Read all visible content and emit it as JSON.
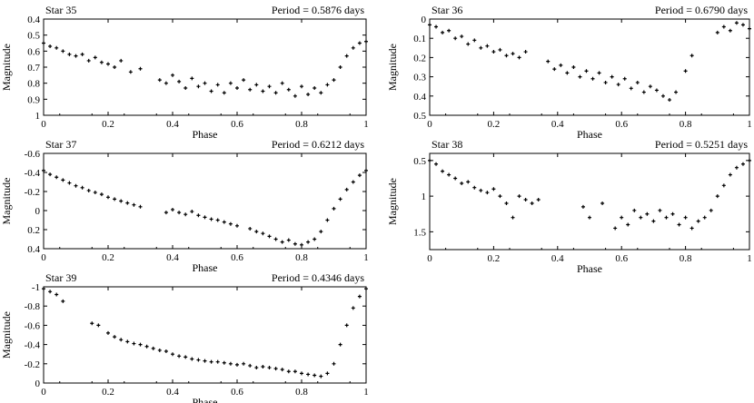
{
  "chart_data": [
    {
      "type": "scatter",
      "star_label": "Star 35",
      "period_label": "Period = 0.5876 days",
      "xlabel": "Phase",
      "ylabel": "Magnitude",
      "xlim": [
        0,
        1
      ],
      "ylim": [
        0.4,
        1.0
      ],
      "y_inverted": true,
      "x_ticks": [
        "0",
        "0.2",
        "0.4",
        "0.6",
        "0.8",
        "1"
      ],
      "y_ticks": [
        "0.4",
        "0.5",
        "0.6",
        "0.7",
        "0.8",
        "0.9",
        "1"
      ],
      "points": [
        [
          0.0,
          0.55
        ],
        [
          0.02,
          0.57
        ],
        [
          0.04,
          0.58
        ],
        [
          0.06,
          0.6
        ],
        [
          0.08,
          0.62
        ],
        [
          0.1,
          0.63
        ],
        [
          0.12,
          0.62
        ],
        [
          0.14,
          0.66
        ],
        [
          0.16,
          0.64
        ],
        [
          0.18,
          0.67
        ],
        [
          0.2,
          0.68
        ],
        [
          0.22,
          0.7
        ],
        [
          0.24,
          0.66
        ],
        [
          0.27,
          0.73
        ],
        [
          0.3,
          0.71
        ],
        [
          0.36,
          0.78
        ],
        [
          0.38,
          0.8
        ],
        [
          0.4,
          0.75
        ],
        [
          0.42,
          0.79
        ],
        [
          0.44,
          0.83
        ],
        [
          0.46,
          0.77
        ],
        [
          0.48,
          0.82
        ],
        [
          0.5,
          0.8
        ],
        [
          0.52,
          0.85
        ],
        [
          0.54,
          0.81
        ],
        [
          0.56,
          0.86
        ],
        [
          0.58,
          0.8
        ],
        [
          0.6,
          0.83
        ],
        [
          0.62,
          0.78
        ],
        [
          0.64,
          0.84
        ],
        [
          0.66,
          0.81
        ],
        [
          0.68,
          0.85
        ],
        [
          0.7,
          0.82
        ],
        [
          0.72,
          0.86
        ],
        [
          0.74,
          0.8
        ],
        [
          0.76,
          0.84
        ],
        [
          0.78,
          0.88
        ],
        [
          0.8,
          0.82
        ],
        [
          0.82,
          0.87
        ],
        [
          0.84,
          0.83
        ],
        [
          0.86,
          0.86
        ],
        [
          0.88,
          0.81
        ],
        [
          0.9,
          0.78
        ],
        [
          0.92,
          0.7
        ],
        [
          0.94,
          0.63
        ],
        [
          0.96,
          0.58
        ],
        [
          0.98,
          0.55
        ],
        [
          1.0,
          0.54
        ]
      ]
    },
    {
      "type": "scatter",
      "star_label": "Star 36",
      "period_label": "Period = 0.6790 days",
      "xlabel": "Phase",
      "ylabel": "Magnitude",
      "xlim": [
        0,
        1
      ],
      "ylim": [
        0.0,
        0.5
      ],
      "y_inverted": true,
      "x_ticks": [
        "0",
        "0.2",
        "0.4",
        "0.6",
        "0.8",
        "1"
      ],
      "y_ticks": [
        "0",
        "0.1",
        "0.2",
        "0.3",
        "0.4",
        "0.5"
      ],
      "points": [
        [
          0.0,
          0.03
        ],
        [
          0.02,
          0.04
        ],
        [
          0.04,
          0.07
        ],
        [
          0.06,
          0.06
        ],
        [
          0.08,
          0.1
        ],
        [
          0.1,
          0.09
        ],
        [
          0.12,
          0.13
        ],
        [
          0.14,
          0.11
        ],
        [
          0.16,
          0.15
        ],
        [
          0.18,
          0.14
        ],
        [
          0.2,
          0.17
        ],
        [
          0.22,
          0.16
        ],
        [
          0.24,
          0.19
        ],
        [
          0.26,
          0.18
        ],
        [
          0.28,
          0.2
        ],
        [
          0.3,
          0.17
        ],
        [
          0.37,
          0.22
        ],
        [
          0.39,
          0.26
        ],
        [
          0.41,
          0.24
        ],
        [
          0.43,
          0.28
        ],
        [
          0.45,
          0.25
        ],
        [
          0.47,
          0.3
        ],
        [
          0.49,
          0.27
        ],
        [
          0.51,
          0.31
        ],
        [
          0.53,
          0.28
        ],
        [
          0.55,
          0.33
        ],
        [
          0.57,
          0.3
        ],
        [
          0.59,
          0.34
        ],
        [
          0.61,
          0.31
        ],
        [
          0.63,
          0.36
        ],
        [
          0.65,
          0.33
        ],
        [
          0.67,
          0.38
        ],
        [
          0.69,
          0.35
        ],
        [
          0.71,
          0.37
        ],
        [
          0.73,
          0.4
        ],
        [
          0.75,
          0.42
        ],
        [
          0.77,
          0.38
        ],
        [
          0.8,
          0.27
        ],
        [
          0.82,
          0.19
        ],
        [
          0.9,
          0.07
        ],
        [
          0.92,
          0.04
        ],
        [
          0.94,
          0.06
        ],
        [
          0.96,
          0.02
        ],
        [
          0.98,
          0.03
        ],
        [
          1.0,
          0.05
        ]
      ]
    },
    {
      "type": "scatter",
      "star_label": "Star 37",
      "period_label": "Period = 0.6212 days",
      "xlabel": "Phase",
      "ylabel": "Magnitude",
      "xlim": [
        0,
        1
      ],
      "ylim": [
        -0.6,
        0.4
      ],
      "y_inverted": true,
      "x_ticks": [
        "0",
        "0.2",
        "0.4",
        "0.6",
        "0.8",
        "1"
      ],
      "y_ticks": [
        "-0.6",
        "-0.4",
        "-0.2",
        "0",
        "0.2",
        "0.4"
      ],
      "points": [
        [
          0.0,
          -0.42
        ],
        [
          0.02,
          -0.38
        ],
        [
          0.04,
          -0.35
        ],
        [
          0.06,
          -0.32
        ],
        [
          0.08,
          -0.29
        ],
        [
          0.1,
          -0.26
        ],
        [
          0.12,
          -0.24
        ],
        [
          0.14,
          -0.21
        ],
        [
          0.16,
          -0.19
        ],
        [
          0.18,
          -0.17
        ],
        [
          0.2,
          -0.14
        ],
        [
          0.22,
          -0.12
        ],
        [
          0.24,
          -0.1
        ],
        [
          0.26,
          -0.08
        ],
        [
          0.28,
          -0.06
        ],
        [
          0.3,
          -0.04
        ],
        [
          0.38,
          0.02
        ],
        [
          0.4,
          -0.01
        ],
        [
          0.42,
          0.02
        ],
        [
          0.44,
          0.04
        ],
        [
          0.46,
          0.01
        ],
        [
          0.48,
          0.05
        ],
        [
          0.5,
          0.07
        ],
        [
          0.52,
          0.09
        ],
        [
          0.54,
          0.1
        ],
        [
          0.56,
          0.12
        ],
        [
          0.58,
          0.14
        ],
        [
          0.6,
          0.16
        ],
        [
          0.64,
          0.19
        ],
        [
          0.66,
          0.22
        ],
        [
          0.68,
          0.24
        ],
        [
          0.7,
          0.27
        ],
        [
          0.72,
          0.3
        ],
        [
          0.74,
          0.33
        ],
        [
          0.76,
          0.31
        ],
        [
          0.78,
          0.35
        ],
        [
          0.8,
          0.36
        ],
        [
          0.82,
          0.33
        ],
        [
          0.84,
          0.3
        ],
        [
          0.86,
          0.22
        ],
        [
          0.88,
          0.1
        ],
        [
          0.9,
          -0.02
        ],
        [
          0.92,
          -0.12
        ],
        [
          0.94,
          -0.22
        ],
        [
          0.96,
          -0.3
        ],
        [
          0.98,
          -0.37
        ],
        [
          1.0,
          -0.42
        ]
      ]
    },
    {
      "type": "scatter",
      "star_label": "Star 38",
      "period_label": "Period = 0.5251 days",
      "xlabel": "Phase",
      "ylabel": "Magnitude",
      "xlim": [
        0,
        1
      ],
      "ylim": [
        0.4,
        1.75
      ],
      "y_inverted": true,
      "x_ticks": [
        "0",
        "0.2",
        "0.4",
        "0.6",
        "0.8",
        "1"
      ],
      "y_ticks": [
        "0.5",
        "1",
        "1.5"
      ],
      "points": [
        [
          0.0,
          0.5
        ],
        [
          0.02,
          0.55
        ],
        [
          0.04,
          0.65
        ],
        [
          0.06,
          0.7
        ],
        [
          0.08,
          0.75
        ],
        [
          0.1,
          0.82
        ],
        [
          0.12,
          0.8
        ],
        [
          0.14,
          0.88
        ],
        [
          0.16,
          0.92
        ],
        [
          0.18,
          0.95
        ],
        [
          0.2,
          0.9
        ],
        [
          0.22,
          1.0
        ],
        [
          0.24,
          1.1
        ],
        [
          0.26,
          1.3
        ],
        [
          0.28,
          1.0
        ],
        [
          0.3,
          1.05
        ],
        [
          0.32,
          1.1
        ],
        [
          0.34,
          1.05
        ],
        [
          0.48,
          1.15
        ],
        [
          0.5,
          1.3
        ],
        [
          0.54,
          1.1
        ],
        [
          0.58,
          1.45
        ],
        [
          0.6,
          1.3
        ],
        [
          0.62,
          1.4
        ],
        [
          0.64,
          1.2
        ],
        [
          0.66,
          1.3
        ],
        [
          0.68,
          1.25
        ],
        [
          0.7,
          1.35
        ],
        [
          0.72,
          1.2
        ],
        [
          0.74,
          1.3
        ],
        [
          0.76,
          1.25
        ],
        [
          0.78,
          1.4
        ],
        [
          0.8,
          1.3
        ],
        [
          0.82,
          1.45
        ],
        [
          0.84,
          1.35
        ],
        [
          0.86,
          1.3
        ],
        [
          0.88,
          1.2
        ],
        [
          0.9,
          1.0
        ],
        [
          0.92,
          0.85
        ],
        [
          0.94,
          0.7
        ],
        [
          0.96,
          0.6
        ],
        [
          0.98,
          0.55
        ],
        [
          1.0,
          0.5
        ]
      ]
    },
    {
      "type": "scatter",
      "star_label": "Star 39",
      "period_label": "Period = 0.4346 days",
      "xlabel": "Phase",
      "ylabel": "Magnitude",
      "xlim": [
        0,
        1
      ],
      "ylim": [
        -1.0,
        0.0
      ],
      "y_inverted": true,
      "x_ticks": [
        "0",
        "0.2",
        "0.4",
        "0.6",
        "0.8",
        "1"
      ],
      "y_ticks": [
        "-1",
        "-0.8",
        "-0.6",
        "-0.4",
        "-0.2",
        "0"
      ],
      "points": [
        [
          0.0,
          -0.98
        ],
        [
          0.02,
          -0.95
        ],
        [
          0.04,
          -0.92
        ],
        [
          0.06,
          -0.85
        ],
        [
          0.15,
          -0.62
        ],
        [
          0.17,
          -0.6
        ],
        [
          0.2,
          -0.52
        ],
        [
          0.22,
          -0.48
        ],
        [
          0.24,
          -0.45
        ],
        [
          0.26,
          -0.43
        ],
        [
          0.28,
          -0.41
        ],
        [
          0.3,
          -0.4
        ],
        [
          0.32,
          -0.38
        ],
        [
          0.34,
          -0.36
        ],
        [
          0.36,
          -0.34
        ],
        [
          0.38,
          -0.33
        ],
        [
          0.4,
          -0.3
        ],
        [
          0.42,
          -0.28
        ],
        [
          0.44,
          -0.27
        ],
        [
          0.46,
          -0.25
        ],
        [
          0.48,
          -0.24
        ],
        [
          0.5,
          -0.23
        ],
        [
          0.52,
          -0.22
        ],
        [
          0.54,
          -0.22
        ],
        [
          0.56,
          -0.21
        ],
        [
          0.58,
          -0.2
        ],
        [
          0.6,
          -0.19
        ],
        [
          0.62,
          -0.2
        ],
        [
          0.64,
          -0.18
        ],
        [
          0.66,
          -0.16
        ],
        [
          0.68,
          -0.17
        ],
        [
          0.7,
          -0.16
        ],
        [
          0.72,
          -0.15
        ],
        [
          0.74,
          -0.14
        ],
        [
          0.76,
          -0.12
        ],
        [
          0.78,
          -0.12
        ],
        [
          0.8,
          -0.1
        ],
        [
          0.82,
          -0.09
        ],
        [
          0.84,
          -0.08
        ],
        [
          0.86,
          -0.07
        ],
        [
          0.88,
          -0.1
        ],
        [
          0.9,
          -0.2
        ],
        [
          0.92,
          -0.4
        ],
        [
          0.94,
          -0.6
        ],
        [
          0.96,
          -0.78
        ],
        [
          0.98,
          -0.9
        ],
        [
          1.0,
          -0.98
        ]
      ]
    }
  ]
}
